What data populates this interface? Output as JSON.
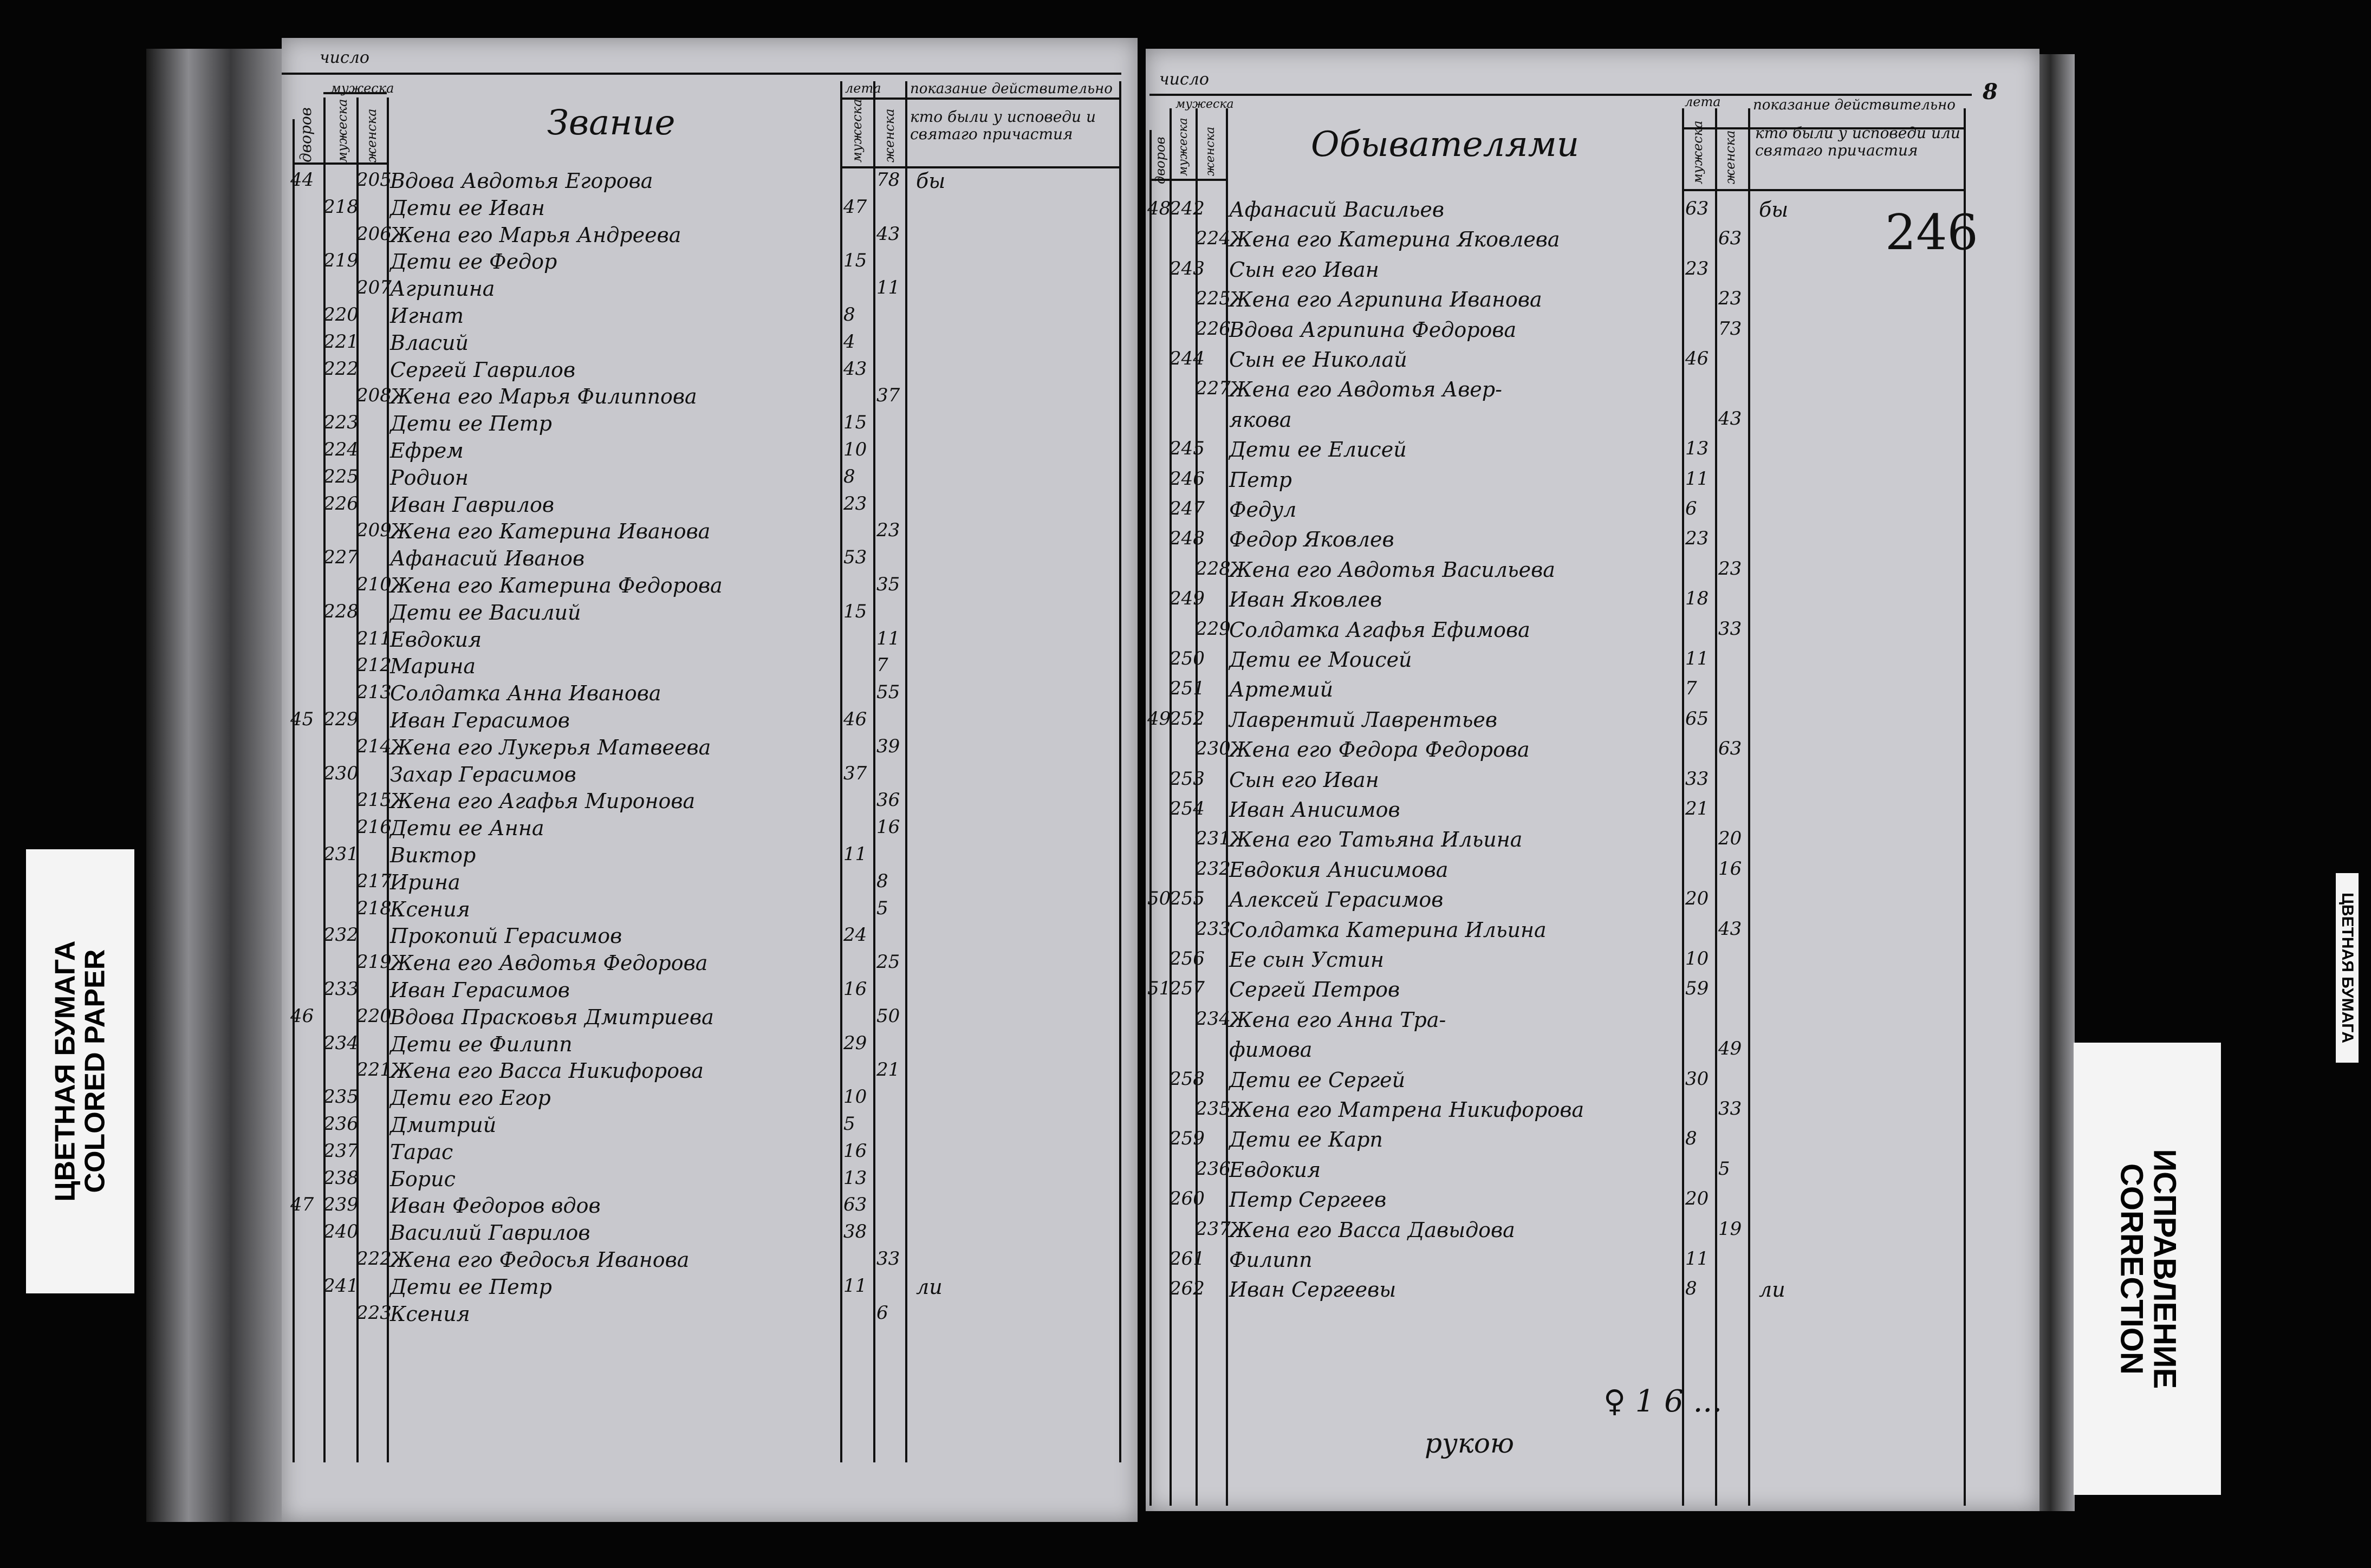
{
  "labels": {
    "colored_paper_ru": "ЦВЕТНАЯ БУМАГА",
    "colored_paper_en": "COLORED PAPER",
    "correction_ru": "ИСПРАВЛЕНИЕ",
    "correction_en": "CORRECTION",
    "edge_strip": "ЦВЕТНАЯ БУМАГА"
  },
  "left_page": {
    "header": {
      "number_group": "число",
      "households": "дворов",
      "souls": "мужеска",
      "male": "мужеска",
      "female": "женска",
      "title": "Звание",
      "ages": "лета",
      "age_male": "мужеска",
      "age_female": "женска",
      "remark_top": "показание действительно",
      "remark": "кто были у исповеди и святаго причастия"
    },
    "rows": [
      {
        "household": "44",
        "male_no": "",
        "female_no": "205",
        "name": "Вдова Авдотья Егорова",
        "age_m": "",
        "age_f": "78",
        "note": "бы"
      },
      {
        "household": "",
        "male_no": "218",
        "female_no": "",
        "name": "Дети ее Иван",
        "age_m": "47",
        "age_f": "",
        "note": ""
      },
      {
        "household": "",
        "male_no": "",
        "female_no": "206",
        "name": "Жена его Марья Андреева",
        "age_m": "",
        "age_f": "43",
        "note": ""
      },
      {
        "household": "",
        "male_no": "219",
        "female_no": "",
        "name": "Дети ее Федор",
        "age_m": "15",
        "age_f": "",
        "note": ""
      },
      {
        "household": "",
        "male_no": "",
        "female_no": "207",
        "name": "Агрипина",
        "age_m": "",
        "age_f": "11",
        "note": ""
      },
      {
        "household": "",
        "male_no": "220",
        "female_no": "",
        "name": "Игнат",
        "age_m": "8",
        "age_f": "",
        "note": ""
      },
      {
        "household": "",
        "male_no": "221",
        "female_no": "",
        "name": "Власий",
        "age_m": "4",
        "age_f": "",
        "note": ""
      },
      {
        "household": "",
        "male_no": "222",
        "female_no": "",
        "name": "Сергей Гаврилов",
        "age_m": "43",
        "age_f": "",
        "note": ""
      },
      {
        "household": "",
        "male_no": "",
        "female_no": "208",
        "name": "Жена его Марья Филиппова",
        "age_m": "",
        "age_f": "37",
        "note": ""
      },
      {
        "household": "",
        "male_no": "223",
        "female_no": "",
        "name": "Дети ее Петр",
        "age_m": "15",
        "age_f": "",
        "note": ""
      },
      {
        "household": "",
        "male_no": "224",
        "female_no": "",
        "name": "Ефрем",
        "age_m": "10",
        "age_f": "",
        "note": ""
      },
      {
        "household": "",
        "male_no": "225",
        "female_no": "",
        "name": "Родион",
        "age_m": "8",
        "age_f": "",
        "note": ""
      },
      {
        "household": "",
        "male_no": "226",
        "female_no": "",
        "name": "Иван Гаврилов",
        "age_m": "23",
        "age_f": "",
        "note": ""
      },
      {
        "household": "",
        "male_no": "",
        "female_no": "209",
        "name": "Жена его Катерина Иванова",
        "age_m": "",
        "age_f": "23",
        "note": ""
      },
      {
        "household": "",
        "male_no": "227",
        "female_no": "",
        "name": "Афанасий Иванов",
        "age_m": "53",
        "age_f": "",
        "note": ""
      },
      {
        "household": "",
        "male_no": "",
        "female_no": "210",
        "name": "Жена его Катерина Федорова",
        "age_m": "",
        "age_f": "35",
        "note": ""
      },
      {
        "household": "",
        "male_no": "228",
        "female_no": "",
        "name": "Дети ее Василий",
        "age_m": "15",
        "age_f": "",
        "note": ""
      },
      {
        "household": "",
        "male_no": "",
        "female_no": "211",
        "name": "Евдокия",
        "age_m": "",
        "age_f": "11",
        "note": ""
      },
      {
        "household": "",
        "male_no": "",
        "female_no": "212",
        "name": "Марина",
        "age_m": "",
        "age_f": "7",
        "note": ""
      },
      {
        "household": "",
        "male_no": "",
        "female_no": "213",
        "name": "Солдатка Анна Иванова",
        "age_m": "",
        "age_f": "55",
        "note": ""
      },
      {
        "household": "45",
        "male_no": "229",
        "female_no": "",
        "name": "Иван Герасимов",
        "age_m": "46",
        "age_f": "",
        "note": ""
      },
      {
        "household": "",
        "male_no": "",
        "female_no": "214",
        "name": "Жена его Лукерья Матвеева",
        "age_m": "",
        "age_f": "39",
        "note": ""
      },
      {
        "household": "",
        "male_no": "230",
        "female_no": "",
        "name": "Захар Герасимов",
        "age_m": "37",
        "age_f": "",
        "note": ""
      },
      {
        "household": "",
        "male_no": "",
        "female_no": "215",
        "name": "Жена его Агафья Миронова",
        "age_m": "",
        "age_f": "36",
        "note": ""
      },
      {
        "household": "",
        "male_no": "",
        "female_no": "216",
        "name": "Дети ее Анна",
        "age_m": "",
        "age_f": "16",
        "note": ""
      },
      {
        "household": "",
        "male_no": "231",
        "female_no": "",
        "name": "Виктор",
        "age_m": "11",
        "age_f": "",
        "note": ""
      },
      {
        "household": "",
        "male_no": "",
        "female_no": "217",
        "name": "Ирина",
        "age_m": "",
        "age_f": "8",
        "note": ""
      },
      {
        "household": "",
        "male_no": "",
        "female_no": "218",
        "name": "Ксения",
        "age_m": "",
        "age_f": "5",
        "note": ""
      },
      {
        "household": "",
        "male_no": "232",
        "female_no": "",
        "name": "Прокопий Герасимов",
        "age_m": "24",
        "age_f": "",
        "note": ""
      },
      {
        "household": "",
        "male_no": "",
        "female_no": "219",
        "name": "Жена его Авдотья Федорова",
        "age_m": "",
        "age_f": "25",
        "note": ""
      },
      {
        "household": "",
        "male_no": "233",
        "female_no": "",
        "name": "Иван Герасимов",
        "age_m": "16",
        "age_f": "",
        "note": ""
      },
      {
        "household": "46",
        "male_no": "",
        "female_no": "220",
        "name": "Вдова Прасковья Дмитриева",
        "age_m": "",
        "age_f": "50",
        "note": ""
      },
      {
        "household": "",
        "male_no": "234",
        "female_no": "",
        "name": "Дети ее Филипп",
        "age_m": "29",
        "age_f": "",
        "note": ""
      },
      {
        "household": "",
        "male_no": "",
        "female_no": "221",
        "name": "Жена его Васса Никифорова",
        "age_m": "",
        "age_f": "21",
        "note": ""
      },
      {
        "household": "",
        "male_no": "235",
        "female_no": "",
        "name": "Дети его Егор",
        "age_m": "10",
        "age_f": "",
        "note": ""
      },
      {
        "household": "",
        "male_no": "236",
        "female_no": "",
        "name": "Дмитрий",
        "age_m": "5",
        "age_f": "",
        "note": ""
      },
      {
        "household": "",
        "male_no": "237",
        "female_no": "",
        "name": "Тарас",
        "age_m": "16",
        "age_f": "",
        "note": ""
      },
      {
        "household": "",
        "male_no": "238",
        "female_no": "",
        "name": "Борис",
        "age_m": "13",
        "age_f": "",
        "note": ""
      },
      {
        "household": "47",
        "male_no": "239",
        "female_no": "",
        "name": "Иван Федоров вдов",
        "age_m": "63",
        "age_f": "",
        "note": ""
      },
      {
        "household": "",
        "male_no": "240",
        "female_no": "",
        "name": "Василий Гаврилов",
        "age_m": "38",
        "age_f": "",
        "note": ""
      },
      {
        "household": "",
        "male_no": "",
        "female_no": "222",
        "name": "Жена его Федосья Иванова",
        "age_m": "",
        "age_f": "33",
        "note": ""
      },
      {
        "household": "",
        "male_no": "241",
        "female_no": "",
        "name": "Дети ее Петр",
        "age_m": "11",
        "age_f": "",
        "note": "ли"
      },
      {
        "household": "",
        "male_no": "",
        "female_no": "223",
        "name": "Ксения",
        "age_m": "",
        "age_f": "6",
        "note": ""
      }
    ]
  },
  "right_page": {
    "page_number": "246",
    "corner_mark": "8",
    "header": {
      "number_group": "число",
      "households": "дворов",
      "souls": "мужеска",
      "male": "мужеска",
      "female": "женска",
      "title": "Обывателями",
      "ages": "лета",
      "age_male": "мужеска",
      "age_female": "женска",
      "remark_top": "показание действительно",
      "remark": "кто были у исповеди или святаго причастия"
    },
    "rows": [
      {
        "household": "48",
        "male_no": "242",
        "female_no": "",
        "name": "Афанасий Васильев",
        "age_m": "63",
        "age_f": "",
        "note": "бы"
      },
      {
        "household": "",
        "male_no": "",
        "female_no": "224",
        "name": "Жена его Катерина Яковлева",
        "age_m": "",
        "age_f": "63",
        "note": ""
      },
      {
        "household": "",
        "male_no": "243",
        "female_no": "",
        "name": "Сын его Иван",
        "age_m": "23",
        "age_f": "",
        "note": ""
      },
      {
        "household": "",
        "male_no": "",
        "female_no": "225",
        "name": "Жена его Агрипина Иванова",
        "age_m": "",
        "age_f": "23",
        "note": ""
      },
      {
        "household": "",
        "male_no": "",
        "female_no": "226",
        "name": "Вдова Агрипина Федорова",
        "age_m": "",
        "age_f": "73",
        "note": ""
      },
      {
        "household": "",
        "male_no": "244",
        "female_no": "",
        "name": "Сын ее Николай",
        "age_m": "46",
        "age_f": "",
        "note": ""
      },
      {
        "household": "",
        "male_no": "",
        "female_no": "227",
        "name": "Жена его Авдотья Авер-",
        "age_m": "",
        "age_f": "",
        "note": ""
      },
      {
        "household": "",
        "male_no": "",
        "female_no": "",
        "name": "якова",
        "age_m": "",
        "age_f": "43",
        "note": ""
      },
      {
        "household": "",
        "male_no": "245",
        "female_no": "",
        "name": "Дети ее Елисей",
        "age_m": "13",
        "age_f": "",
        "note": ""
      },
      {
        "household": "",
        "male_no": "246",
        "female_no": "",
        "name": "Петр",
        "age_m": "11",
        "age_f": "",
        "note": ""
      },
      {
        "household": "",
        "male_no": "247",
        "female_no": "",
        "name": "Федул",
        "age_m": "6",
        "age_f": "",
        "note": ""
      },
      {
        "household": "",
        "male_no": "248",
        "female_no": "",
        "name": "Федор Яковлев",
        "age_m": "23",
        "age_f": "",
        "note": ""
      },
      {
        "household": "",
        "male_no": "",
        "female_no": "228",
        "name": "Жена его Авдотья Васильева",
        "age_m": "",
        "age_f": "23",
        "note": ""
      },
      {
        "household": "",
        "male_no": "249",
        "female_no": "",
        "name": "Иван Яковлев",
        "age_m": "18",
        "age_f": "",
        "note": ""
      },
      {
        "household": "",
        "male_no": "",
        "female_no": "229",
        "name": "Солдатка Агафья Ефимова",
        "age_m": "",
        "age_f": "33",
        "note": ""
      },
      {
        "household": "",
        "male_no": "250",
        "female_no": "",
        "name": "Дети ее Моисей",
        "age_m": "11",
        "age_f": "",
        "note": ""
      },
      {
        "household": "",
        "male_no": "251",
        "female_no": "",
        "name": "Артемий",
        "age_m": "7",
        "age_f": "",
        "note": ""
      },
      {
        "household": "49",
        "male_no": "252",
        "female_no": "",
        "name": "Лаврентий Лаврентьев",
        "age_m": "65",
        "age_f": "",
        "note": ""
      },
      {
        "household": "",
        "male_no": "",
        "female_no": "230",
        "name": "Жена его Федора Федорова",
        "age_m": "",
        "age_f": "63",
        "note": ""
      },
      {
        "household": "",
        "male_no": "253",
        "female_no": "",
        "name": "Сын его Иван",
        "age_m": "33",
        "age_f": "",
        "note": ""
      },
      {
        "household": "",
        "male_no": "254",
        "female_no": "",
        "name": "Иван Анисимов",
        "age_m": "21",
        "age_f": "",
        "note": ""
      },
      {
        "household": "",
        "male_no": "",
        "female_no": "231",
        "name": "Жена его Татьяна Ильина",
        "age_m": "",
        "age_f": "20",
        "note": ""
      },
      {
        "household": "",
        "male_no": "",
        "female_no": "232",
        "name": "Евдокия Анисимова",
        "age_m": "",
        "age_f": "16",
        "note": ""
      },
      {
        "household": "50",
        "male_no": "255",
        "female_no": "",
        "name": "Алексей Герасимов",
        "age_m": "20",
        "age_f": "",
        "note": ""
      },
      {
        "household": "",
        "male_no": "",
        "female_no": "233",
        "name": "Солдатка Катерина Ильина",
        "age_m": "",
        "age_f": "43",
        "note": ""
      },
      {
        "household": "",
        "male_no": "256",
        "female_no": "",
        "name": "Ее сын Устин",
        "age_m": "10",
        "age_f": "",
        "note": ""
      },
      {
        "household": "51",
        "male_no": "257",
        "female_no": "",
        "name": "Сергей Петров",
        "age_m": "59",
        "age_f": "",
        "note": ""
      },
      {
        "household": "",
        "male_no": "",
        "female_no": "234",
        "name": "Жена его Анна Тра-",
        "age_m": "",
        "age_f": "",
        "note": ""
      },
      {
        "household": "",
        "male_no": "",
        "female_no": "",
        "name": "фимова",
        "age_m": "",
        "age_f": "49",
        "note": ""
      },
      {
        "household": "",
        "male_no": "258",
        "female_no": "",
        "name": "Дети ее Сергей",
        "age_m": "30",
        "age_f": "",
        "note": ""
      },
      {
        "household": "",
        "male_no": "",
        "female_no": "235",
        "name": "Жена его Матрена Никифорова",
        "age_m": "",
        "age_f": "33",
        "note": ""
      },
      {
        "household": "",
        "male_no": "259",
        "female_no": "",
        "name": "Дети ее Карп",
        "age_m": "8",
        "age_f": "",
        "note": ""
      },
      {
        "household": "",
        "male_no": "",
        "female_no": "236",
        "name": "Евдокия",
        "age_m": "",
        "age_f": "5",
        "note": ""
      },
      {
        "household": "",
        "male_no": "260",
        "female_no": "",
        "name": "Петр Сергеев",
        "age_m": "20",
        "age_f": "",
        "note": ""
      },
      {
        "household": "",
        "male_no": "",
        "female_no": "237",
        "name": "Жена его Васса Давыдова",
        "age_m": "",
        "age_f": "19",
        "note": ""
      },
      {
        "household": "",
        "male_no": "261",
        "female_no": "",
        "name": "Филипп",
        "age_m": "11",
        "age_f": "",
        "note": ""
      },
      {
        "household": "",
        "male_no": "262",
        "female_no": "",
        "name": "Иван Сергеевы",
        "age_m": "8",
        "age_f": "",
        "note": "ли"
      }
    ],
    "bottom_marks": [
      "рукою",
      "♀ 1 6 ..."
    ]
  }
}
